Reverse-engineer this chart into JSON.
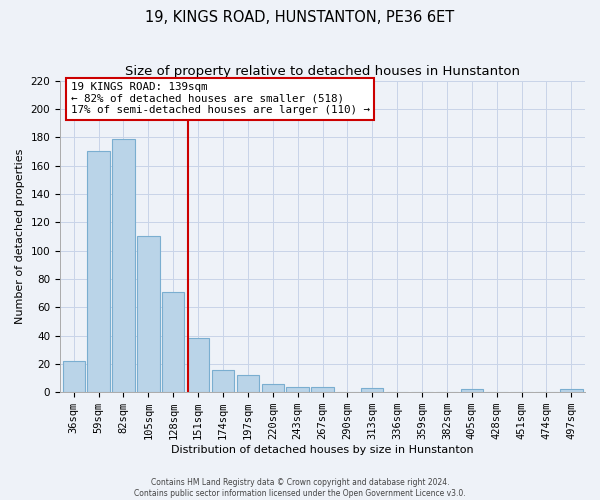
{
  "title": "19, KINGS ROAD, HUNSTANTON, PE36 6ET",
  "subtitle": "Size of property relative to detached houses in Hunstanton",
  "xlabel": "Distribution of detached houses by size in Hunstanton",
  "ylabel": "Number of detached properties",
  "bar_labels": [
    "36sqm",
    "59sqm",
    "82sqm",
    "105sqm",
    "128sqm",
    "151sqm",
    "174sqm",
    "197sqm",
    "220sqm",
    "243sqm",
    "267sqm",
    "290sqm",
    "313sqm",
    "336sqm",
    "359sqm",
    "382sqm",
    "405sqm",
    "428sqm",
    "451sqm",
    "474sqm",
    "497sqm"
  ],
  "bar_values": [
    22,
    170,
    179,
    110,
    71,
    38,
    16,
    12,
    6,
    4,
    4,
    0,
    3,
    0,
    0,
    0,
    2,
    0,
    0,
    0,
    2
  ],
  "bar_color": "#bad4e8",
  "bar_edge_color": "#7aaed0",
  "vline_x": 4.58,
  "vline_color": "#cc0000",
  "annotation_line1": "19 KINGS ROAD: 139sqm",
  "annotation_line2": "← 82% of detached houses are smaller (518)",
  "annotation_line3": "17% of semi-detached houses are larger (110) →",
  "annotation_box_color": "#ffffff",
  "annotation_box_edge": "#cc0000",
  "ylim": [
    0,
    220
  ],
  "yticks": [
    0,
    20,
    40,
    60,
    80,
    100,
    120,
    140,
    160,
    180,
    200,
    220
  ],
  "grid_color": "#c8d4e8",
  "footer_line1": "Contains HM Land Registry data © Crown copyright and database right 2024.",
  "footer_line2": "Contains public sector information licensed under the Open Government Licence v3.0.",
  "bg_color": "#eef2f8",
  "title_fontsize": 10.5,
  "subtitle_fontsize": 9.5,
  "axis_label_fontsize": 8,
  "tick_fontsize": 7.5
}
